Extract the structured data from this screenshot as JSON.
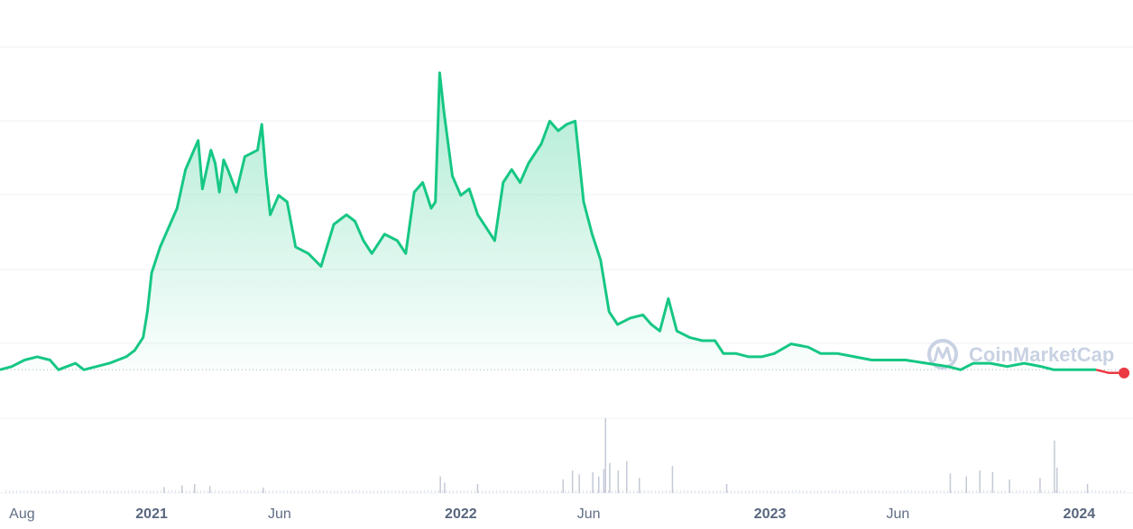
{
  "chart_data": {
    "type": "area",
    "title": "",
    "xlabel": "",
    "ylabel": "",
    "x_tick_labels": [
      {
        "label": "Aug",
        "date": "2020-08-01",
        "year": false
      },
      {
        "label": "2021",
        "date": "2021-01-01",
        "year": true
      },
      {
        "label": "Jun",
        "date": "2021-06-01",
        "year": false
      },
      {
        "label": "2022",
        "date": "2022-01-01",
        "year": true
      },
      {
        "label": "Jun",
        "date": "2022-06-01",
        "year": false
      },
      {
        "label": "2023",
        "date": "2023-01-01",
        "year": true
      },
      {
        "label": "Jun",
        "date": "2023-06-01",
        "year": false
      },
      {
        "label": "2024",
        "date": "2024-01-01",
        "year": true
      }
    ],
    "xlim": [
      "2020-07-06",
      "2024-02-25"
    ],
    "ylim": [
      -0.15,
      1.0
    ],
    "y_tick_labels_shown": false,
    "baseline_value": 0.0,
    "grid": true,
    "legend": "none",
    "series": [
      {
        "color_above": "#16c784",
        "color_below": "#ea3943",
        "points": [
          [
            "2020-07-06",
            0.0
          ],
          [
            "2020-07-20",
            0.01
          ],
          [
            "2020-08-04",
            0.03
          ],
          [
            "2020-08-19",
            0.04
          ],
          [
            "2020-09-03",
            0.03
          ],
          [
            "2020-09-13",
            0.0
          ],
          [
            "2020-09-23",
            0.01
          ],
          [
            "2020-10-03",
            0.02
          ],
          [
            "2020-10-13",
            0.0
          ],
          [
            "2020-10-28",
            0.01
          ],
          [
            "2020-11-12",
            0.02
          ],
          [
            "2020-11-22",
            0.03
          ],
          [
            "2020-12-02",
            0.04
          ],
          [
            "2020-12-12",
            0.06
          ],
          [
            "2020-12-22",
            0.1
          ],
          [
            "2020-12-27",
            0.18
          ],
          [
            "2021-01-01",
            0.3
          ],
          [
            "2021-01-11",
            0.38
          ],
          [
            "2021-01-21",
            0.44
          ],
          [
            "2021-01-31",
            0.5
          ],
          [
            "2021-02-10",
            0.62
          ],
          [
            "2021-02-20",
            0.68
          ],
          [
            "2021-02-25",
            0.71
          ],
          [
            "2021-03-02",
            0.56
          ],
          [
            "2021-03-12",
            0.68
          ],
          [
            "2021-03-17",
            0.64
          ],
          [
            "2021-03-22",
            0.55
          ],
          [
            "2021-03-27",
            0.65
          ],
          [
            "2021-04-01",
            0.62
          ],
          [
            "2021-04-11",
            0.55
          ],
          [
            "2021-04-21",
            0.66
          ],
          [
            "2021-05-06",
            0.68
          ],
          [
            "2021-05-11",
            0.76
          ],
          [
            "2021-05-16",
            0.6
          ],
          [
            "2021-05-21",
            0.48
          ],
          [
            "2021-05-31",
            0.54
          ],
          [
            "2021-06-10",
            0.52
          ],
          [
            "2021-06-20",
            0.38
          ],
          [
            "2021-07-05",
            0.36
          ],
          [
            "2021-07-20",
            0.32
          ],
          [
            "2021-08-04",
            0.45
          ],
          [
            "2021-08-19",
            0.48
          ],
          [
            "2021-08-29",
            0.46
          ],
          [
            "2021-09-08",
            0.4
          ],
          [
            "2021-09-18",
            0.36
          ],
          [
            "2021-10-03",
            0.42
          ],
          [
            "2021-10-18",
            0.4
          ],
          [
            "2021-10-28",
            0.36
          ],
          [
            "2021-11-07",
            0.55
          ],
          [
            "2021-11-17",
            0.58
          ],
          [
            "2021-11-27",
            0.5
          ],
          [
            "2021-12-02",
            0.52
          ],
          [
            "2021-12-07",
            0.92
          ],
          [
            "2021-12-12",
            0.8
          ],
          [
            "2021-12-22",
            0.6
          ],
          [
            "2022-01-01",
            0.54
          ],
          [
            "2022-01-11",
            0.56
          ],
          [
            "2022-01-21",
            0.48
          ],
          [
            "2022-01-31",
            0.44
          ],
          [
            "2022-02-10",
            0.4
          ],
          [
            "2022-02-20",
            0.58
          ],
          [
            "2022-03-02",
            0.62
          ],
          [
            "2022-03-12",
            0.58
          ],
          [
            "2022-03-22",
            0.64
          ],
          [
            "2022-04-06",
            0.7
          ],
          [
            "2022-04-16",
            0.77
          ],
          [
            "2022-04-26",
            0.74
          ],
          [
            "2022-05-06",
            0.76
          ],
          [
            "2022-05-16",
            0.77
          ],
          [
            "2022-05-26",
            0.52
          ],
          [
            "2022-06-05",
            0.42
          ],
          [
            "2022-06-15",
            0.34
          ],
          [
            "2022-06-25",
            0.18
          ],
          [
            "2022-07-05",
            0.14
          ],
          [
            "2022-07-20",
            0.16
          ],
          [
            "2022-08-04",
            0.17
          ],
          [
            "2022-08-14",
            0.14
          ],
          [
            "2022-08-24",
            0.12
          ],
          [
            "2022-09-03",
            0.22
          ],
          [
            "2022-09-13",
            0.12
          ],
          [
            "2022-09-28",
            0.1
          ],
          [
            "2022-10-13",
            0.09
          ],
          [
            "2022-10-28",
            0.09
          ],
          [
            "2022-11-07",
            0.05
          ],
          [
            "2022-11-22",
            0.05
          ],
          [
            "2022-12-07",
            0.04
          ],
          [
            "2022-12-22",
            0.04
          ],
          [
            "2023-01-06",
            0.05
          ],
          [
            "2023-01-26",
            0.08
          ],
          [
            "2023-02-15",
            0.07
          ],
          [
            "2023-03-02",
            0.05
          ],
          [
            "2023-03-22",
            0.05
          ],
          [
            "2023-04-11",
            0.04
          ],
          [
            "2023-05-01",
            0.03
          ],
          [
            "2023-05-21",
            0.03
          ],
          [
            "2023-06-10",
            0.03
          ],
          [
            "2023-07-05",
            0.02
          ],
          [
            "2023-07-30",
            0.01
          ],
          [
            "2023-08-14",
            0.0
          ],
          [
            "2023-08-29",
            0.02
          ],
          [
            "2023-09-18",
            0.02
          ],
          [
            "2023-10-08",
            0.01
          ],
          [
            "2023-10-28",
            0.02
          ],
          [
            "2023-11-17",
            0.01
          ],
          [
            "2023-12-02",
            0.0
          ],
          [
            "2023-12-17",
            0.0
          ],
          [
            "2024-01-01",
            0.0
          ],
          [
            "2024-01-21",
            0.0
          ],
          [
            "2024-02-05",
            -0.01
          ],
          [
            "2024-02-23",
            -0.01
          ]
        ]
      }
    ],
    "volume": {
      "type": "bar",
      "color": "#c3c9d6",
      "values": [
        [
          "2021-01-15",
          0.08
        ],
        [
          "2021-02-05",
          0.1
        ],
        [
          "2021-02-20",
          0.12
        ],
        [
          "2021-03-10",
          0.09
        ],
        [
          "2021-05-12",
          0.07
        ],
        [
          "2021-12-07",
          0.22
        ],
        [
          "2021-12-12",
          0.14
        ],
        [
          "2022-01-20",
          0.12
        ],
        [
          "2022-05-01",
          0.18
        ],
        [
          "2022-05-12",
          0.3
        ],
        [
          "2022-05-20",
          0.25
        ],
        [
          "2022-06-05",
          0.28
        ],
        [
          "2022-06-12",
          0.22
        ],
        [
          "2022-06-18",
          0.32
        ],
        [
          "2022-06-20",
          1.0
        ],
        [
          "2022-06-25",
          0.4
        ],
        [
          "2022-07-05",
          0.3
        ],
        [
          "2022-07-15",
          0.42
        ],
        [
          "2022-07-30",
          0.2
        ],
        [
          "2022-09-07",
          0.36
        ],
        [
          "2022-11-10",
          0.12
        ],
        [
          "2023-08-01",
          0.26
        ],
        [
          "2023-08-20",
          0.22
        ],
        [
          "2023-09-05",
          0.3
        ],
        [
          "2023-09-20",
          0.28
        ],
        [
          "2023-10-10",
          0.18
        ],
        [
          "2023-11-15",
          0.2
        ],
        [
          "2023-12-02",
          0.7
        ],
        [
          "2023-12-05",
          0.34
        ],
        [
          "2024-01-10",
          0.12
        ]
      ]
    }
  },
  "watermark": {
    "text": "CoinMarketCap",
    "icon": "coinmarketcap-logo-icon"
  }
}
